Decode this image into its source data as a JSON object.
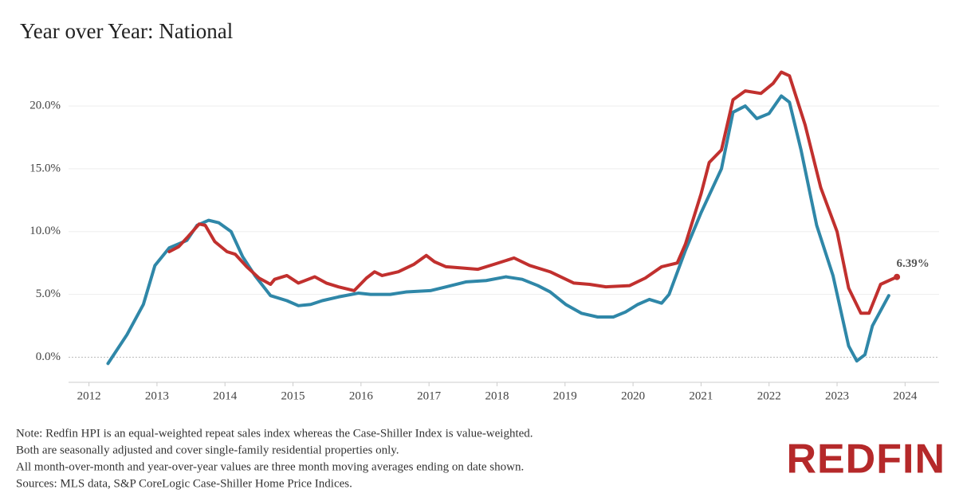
{
  "chart_data": {
    "type": "line",
    "title": "Year over Year:  National",
    "notes": [
      "Note: Redfin HPI is an equal-weighted repeat sales index whereas the Case-Shiller Index is value-weighted.",
      "Both are seasonally adjusted and cover single-family residential properties only.",
      "All month-over-month and year-over-year values are three month moving averages ending on date shown.",
      "Sources: MLS data, S&P CoreLogic Case-Shiller Home Price Indices."
    ],
    "logo": "REDFIN",
    "xlim": [
      2011.7,
      2024.5
    ],
    "xticks": [
      2012,
      2013,
      2014,
      2015,
      2016,
      2017,
      2018,
      2019,
      2020,
      2021,
      2022,
      2023,
      2024
    ],
    "ylim": [
      -2,
      24
    ],
    "yticks": [
      {
        "value": 0,
        "label": "0.0%"
      },
      {
        "value": 5,
        "label": "5.0%"
      },
      {
        "value": 10,
        "label": "10.0%"
      },
      {
        "value": 15,
        "label": "15.0%"
      },
      {
        "value": 20,
        "label": "20.0%"
      }
    ],
    "grid": true,
    "series": [
      {
        "color": "#2f87a8",
        "x": [
          2012.28,
          2012.56,
          2012.8,
          2012.97,
          2013.18,
          2013.44,
          2013.59,
          2013.76,
          2013.91,
          2014.09,
          2014.26,
          2014.44,
          2014.67,
          2014.91,
          2015.08,
          2015.26,
          2015.43,
          2015.67,
          2015.96,
          2016.14,
          2016.43,
          2016.67,
          2017.02,
          2017.25,
          2017.55,
          2017.84,
          2018.13,
          2018.37,
          2018.6,
          2018.78,
          2019.01,
          2019.24,
          2019.48,
          2019.71,
          2019.89,
          2020.07,
          2020.24,
          2020.42,
          2020.53,
          2020.77,
          2021.0,
          2021.3,
          2021.47,
          2021.65,
          2021.82,
          2022.0,
          2022.18,
          2022.3,
          2022.47,
          2022.7,
          2022.94,
          2023.17,
          2023.29,
          2023.41,
          2023.52,
          2023.76
        ],
        "values": [
          -0.5,
          1.8,
          4.2,
          7.3,
          8.7,
          9.3,
          10.5,
          10.9,
          10.7,
          10.0,
          8.0,
          6.5,
          4.9,
          4.5,
          4.1,
          4.2,
          4.5,
          4.8,
          5.1,
          5.0,
          5.0,
          5.2,
          5.3,
          5.6,
          6.0,
          6.1,
          6.4,
          6.2,
          5.7,
          5.2,
          4.2,
          3.5,
          3.2,
          3.2,
          3.6,
          4.2,
          4.6,
          4.3,
          5.0,
          8.5,
          11.5,
          15.0,
          19.5,
          20.0,
          19.0,
          19.4,
          20.8,
          20.3,
          16.5,
          10.5,
          6.5,
          0.9,
          -0.3,
          0.2,
          2.5,
          4.9
        ]
      },
      {
        "color": "#c1302e",
        "x": [
          2013.18,
          2013.32,
          2013.44,
          2013.62,
          2013.71,
          2013.85,
          2014.03,
          2014.15,
          2014.32,
          2014.5,
          2014.67,
          2014.73,
          2014.91,
          2015.08,
          2015.32,
          2015.49,
          2015.67,
          2015.9,
          2016.08,
          2016.2,
          2016.31,
          2016.55,
          2016.78,
          2016.96,
          2017.08,
          2017.25,
          2017.49,
          2017.72,
          2017.96,
          2018.25,
          2018.48,
          2018.78,
          2019.13,
          2019.36,
          2019.6,
          2019.95,
          2020.18,
          2020.42,
          2020.65,
          2020.77,
          2021.0,
          2021.12,
          2021.3,
          2021.47,
          2021.65,
          2021.88,
          2022.06,
          2022.18,
          2022.3,
          2022.53,
          2022.76,
          2023.0,
          2023.17,
          2023.35,
          2023.47,
          2023.64,
          2023.88
        ],
        "values": [
          8.4,
          8.8,
          9.5,
          10.6,
          10.5,
          9.2,
          8.4,
          8.2,
          7.2,
          6.3,
          5.8,
          6.2,
          6.5,
          5.9,
          6.4,
          5.9,
          5.6,
          5.3,
          6.3,
          6.8,
          6.5,
          6.8,
          7.4,
          8.1,
          7.6,
          7.2,
          7.1,
          7.0,
          7.4,
          7.9,
          7.3,
          6.8,
          5.9,
          5.8,
          5.6,
          5.7,
          6.3,
          7.2,
          7.5,
          9.0,
          13.0,
          15.5,
          16.5,
          20.5,
          21.2,
          21.0,
          21.8,
          22.7,
          22.4,
          18.5,
          13.5,
          10.0,
          5.5,
          3.5,
          3.5,
          5.8,
          6.39
        ],
        "value_labels": [
          null,
          null,
          null,
          null,
          null,
          null,
          null,
          null,
          null,
          null,
          null,
          null,
          null,
          null,
          null,
          null,
          null,
          null,
          null,
          null,
          null,
          null,
          null,
          null,
          null,
          null,
          null,
          null,
          null,
          null,
          null,
          null,
          null,
          null,
          null,
          null,
          null,
          null,
          null,
          null,
          null,
          null,
          null,
          null,
          null,
          null,
          null,
          null,
          null,
          null,
          null,
          null,
          null,
          null,
          null,
          null,
          "6.39%"
        ]
      }
    ]
  }
}
